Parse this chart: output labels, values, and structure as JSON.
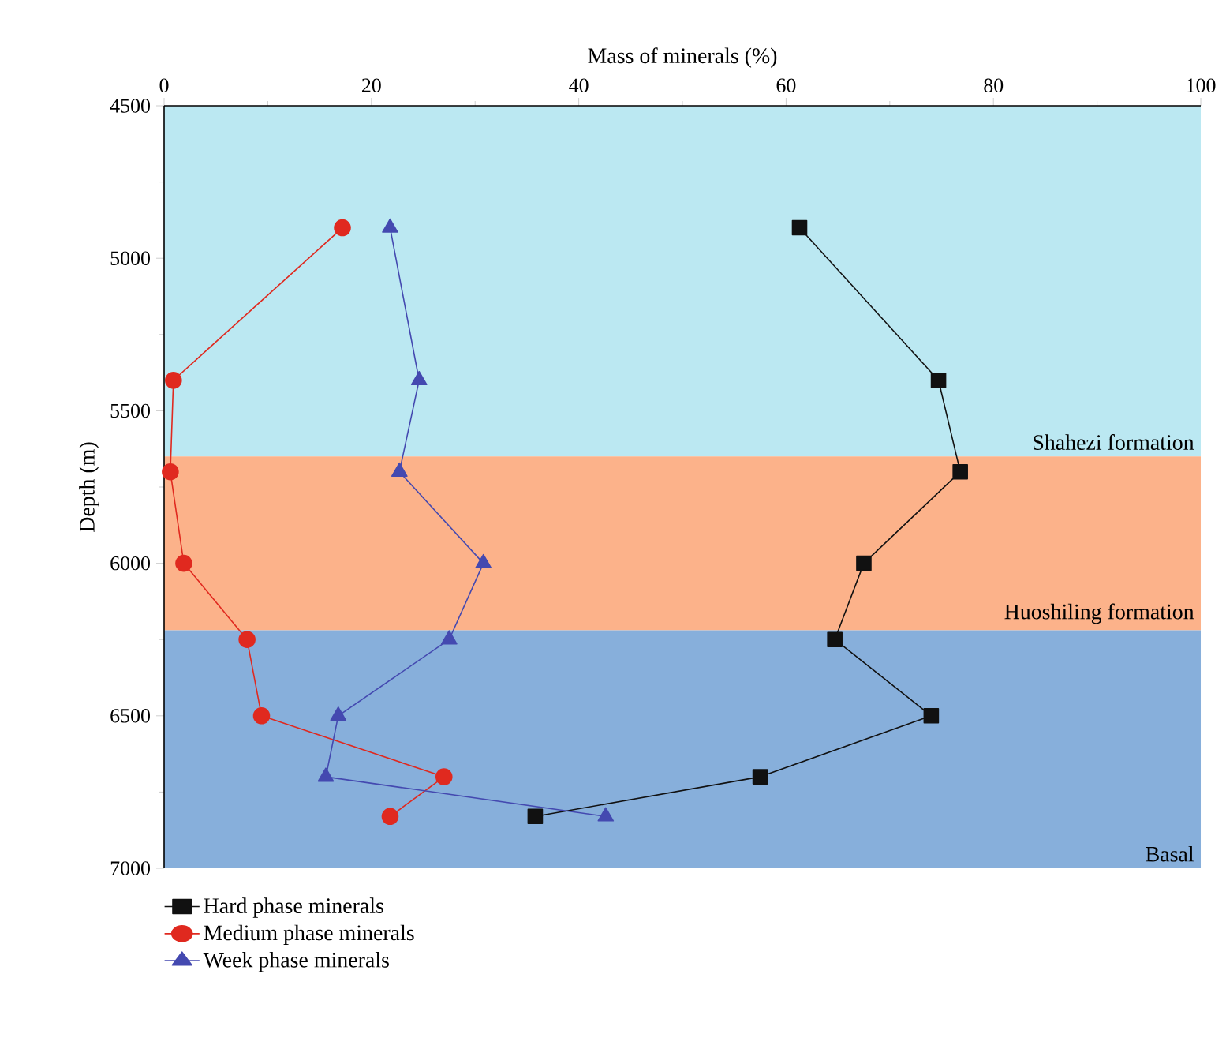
{
  "chart_data": {
    "type": "line",
    "xlabel": "Mass of minerals (%)",
    "ylabel": "Depth (m)",
    "xlim": [
      0,
      100
    ],
    "xticks": [
      0,
      20,
      40,
      60,
      80,
      100
    ],
    "ylim": [
      7000,
      4500
    ],
    "yticks": [
      4500,
      5000,
      5500,
      6000,
      6500,
      7000
    ],
    "grid": false,
    "legend": "bottom left",
    "series": [
      {
        "name": "Hard phase minerals",
        "color": "#111111",
        "marker": "square",
        "x": [
          61.3,
          74.7,
          76.8,
          67.5,
          64.7,
          74.0,
          57.5,
          35.8
        ],
        "values": [
          4900,
          5400,
          5700,
          6000,
          6250,
          6500,
          6700,
          6830
        ]
      },
      {
        "name": "Medium phase minerals",
        "color": "#e0291f",
        "marker": "circle",
        "x": [
          17.2,
          0.9,
          0.6,
          1.9,
          8.0,
          9.4,
          27.0,
          21.8
        ],
        "values": [
          4900,
          5400,
          5700,
          6000,
          6250,
          6500,
          6700,
          6830
        ]
      },
      {
        "name": "Week phase minerals",
        "color": "#4449b0",
        "marker": "triangle",
        "x": [
          21.8,
          24.6,
          22.7,
          30.8,
          27.5,
          16.8,
          15.6,
          42.6
        ],
        "values": [
          4900,
          5400,
          5700,
          6000,
          6250,
          6500,
          6700,
          6830
        ]
      }
    ],
    "bands": [
      {
        "axis": "y",
        "from": 4500,
        "to": 5650,
        "label": "Shahezi formation",
        "color": "#bbe8f2"
      },
      {
        "axis": "y",
        "from": 5650,
        "to": 6220,
        "label": "Huoshiling formation",
        "color": "#fcb28a"
      },
      {
        "axis": "y",
        "from": 6220,
        "to": 7000,
        "label": "Basal",
        "color": "#87afdb"
      }
    ]
  }
}
